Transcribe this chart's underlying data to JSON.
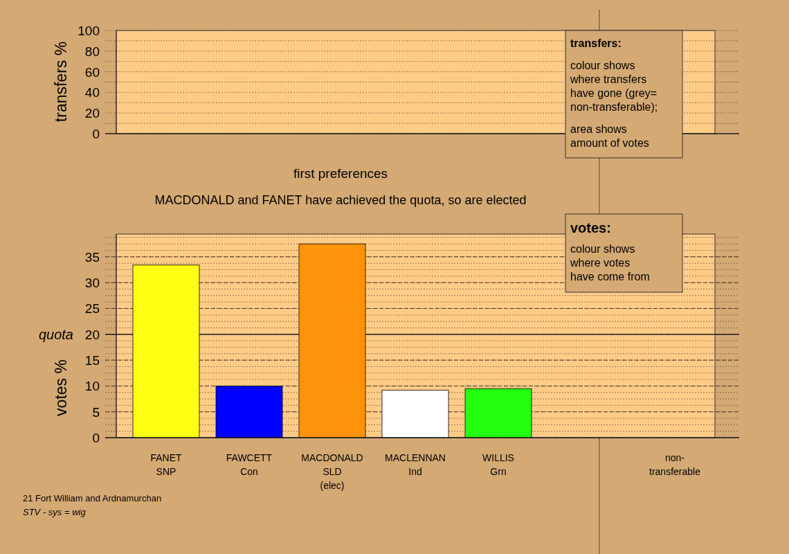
{
  "chart_data": [
    {
      "type": "bar",
      "ylabel": "transfers %",
      "categories": [
        null
      ],
      "values": [
        null
      ],
      "ylim": [
        0,
        100
      ],
      "yticks": [
        0,
        20,
        40,
        60,
        80,
        100
      ],
      "grid": "y",
      "annotations": [
        "transfers:",
        "colour shows\nwhere transfers\nhave gone (grey=\nnon-transferable);",
        "area shows\namount of votes"
      ]
    },
    {
      "type": "bar",
      "title": "first preferences",
      "subtitle": "MACDONALD and FANET have achieved the quota, so are elected",
      "ylabel": "votes %",
      "categories": [
        "FANET\nSNP",
        "FAWCETT\nCon",
        "MACDONALD\nSLD\n(elec)",
        "MACLENNAN\nInd",
        "WILLIS\nGrn",
        null,
        "non-\ntransferable"
      ],
      "values": [
        33.4,
        10.0,
        37.5,
        9.2,
        9.5,
        null,
        null
      ],
      "colors": [
        "#ffff14",
        "#0000ff",
        "#ff940c",
        "#ffffff",
        "#22ff10",
        null,
        null
      ],
      "ylim": [
        0,
        39.4
      ],
      "yticks": [
        0,
        5,
        10,
        15,
        20,
        25,
        30,
        35
      ],
      "grid": "y",
      "ref_lines": [
        {
          "axis": "y",
          "value": 20,
          "label": "quota"
        }
      ],
      "annotations": [
        "votes:",
        "colour shows\nwhere votes\nhave come from",
        "21 Fort William and Ardnamurchan",
        "STV - sys = wig"
      ]
    }
  ]
}
